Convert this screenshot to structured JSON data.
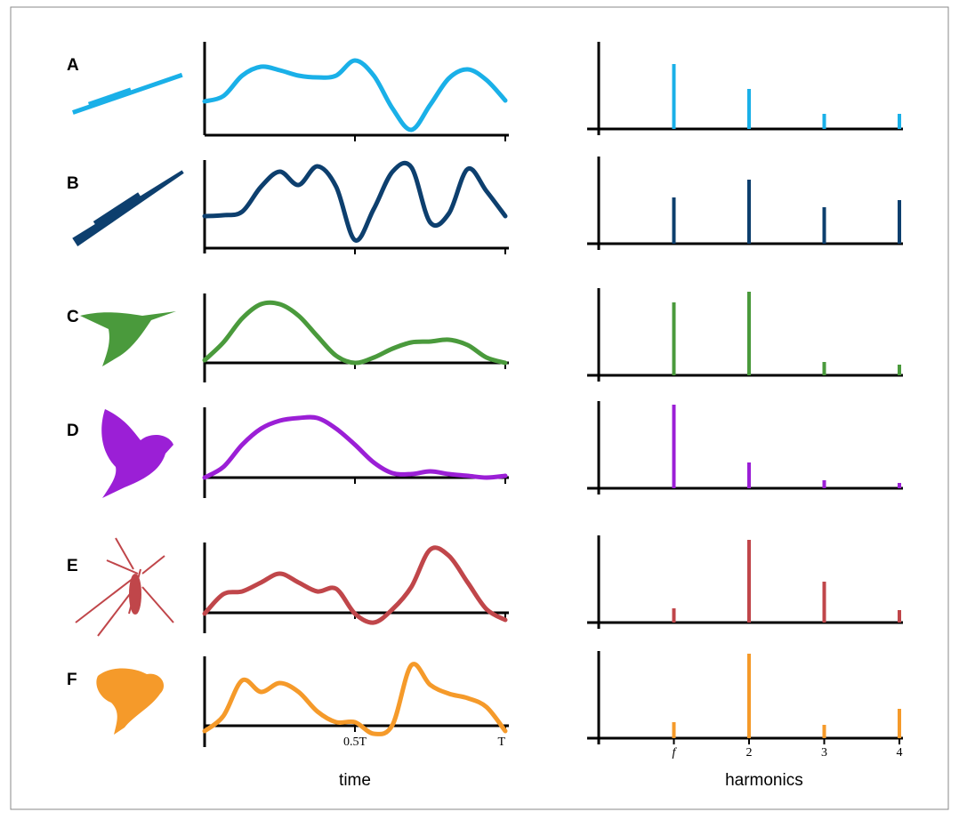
{
  "chart_data": [
    {
      "type": "line",
      "panel": "A",
      "x": [
        0,
        0.0625,
        0.125,
        0.1875,
        0.25,
        0.3125,
        0.375,
        0.4375,
        0.5,
        0.5625,
        0.625,
        0.6875,
        0.75,
        0.8125,
        0.875,
        0.9375,
        1
      ],
      "xlim": [
        0,
        1
      ],
      "ylim": [
        0,
        1.05
      ],
      "series": [
        {
          "color": "#1ab0e8",
          "values": [
            0.38,
            0.44,
            0.67,
            0.77,
            0.73,
            0.67,
            0.65,
            0.67,
            0.84,
            0.67,
            0.3,
            0.06,
            0.34,
            0.64,
            0.74,
            0.62,
            0.39
          ]
        }
      ]
    },
    {
      "type": "bar",
      "x": [
        1,
        2,
        3,
        4
      ],
      "xlim": [
        0,
        4
      ],
      "ylim": [
        -0.07,
        0.98
      ],
      "color": "#1ab0e8",
      "values": [
        0.73,
        0.45,
        0.17,
        0.17
      ]
    },
    {
      "type": "line",
      "panel": "B",
      "x": [
        0,
        0.0625,
        0.125,
        0.1875,
        0.25,
        0.3125,
        0.375,
        0.4375,
        0.5,
        0.5625,
        0.625,
        0.6875,
        0.75,
        0.8125,
        0.875,
        0.9375,
        1
      ],
      "xlim": [
        0,
        1
      ],
      "ylim": [
        -0.06,
        0.99
      ],
      "series": [
        {
          "color": "#0d3f6e",
          "values": [
            0.36,
            0.37,
            0.41,
            0.69,
            0.86,
            0.71,
            0.92,
            0.69,
            0.09,
            0.44,
            0.86,
            0.91,
            0.29,
            0.39,
            0.89,
            0.64,
            0.36
          ]
        }
      ]
    },
    {
      "type": "bar",
      "x": [
        1,
        2,
        3,
        4
      ],
      "xlim": [
        0,
        4
      ],
      "ylim": [
        -0.07,
        0.98
      ],
      "color": "#0d3f6e",
      "values": [
        0.52,
        0.72,
        0.41,
        0.49
      ]
    },
    {
      "type": "line",
      "panel": "C",
      "x": [
        0,
        0.0625,
        0.125,
        0.1875,
        0.25,
        0.3125,
        0.375,
        0.4375,
        0.5,
        0.5625,
        0.625,
        0.6875,
        0.75,
        0.8125,
        0.875,
        0.9375,
        1
      ],
      "xlim": [
        0,
        1
      ],
      "ylim": [
        -0.22,
        0.78
      ],
      "series": [
        {
          "color": "#4a9a3c",
          "values": [
            0.03,
            0.23,
            0.5,
            0.66,
            0.66,
            0.53,
            0.3,
            0.08,
            0,
            0.06,
            0.16,
            0.23,
            0.24,
            0.26,
            0.2,
            0.06,
            0
          ]
        }
      ]
    },
    {
      "type": "bar",
      "x": [
        1,
        2,
        3,
        4
      ],
      "xlim": [
        0,
        4
      ],
      "ylim": [
        -0.07,
        0.98
      ],
      "color": "#4a9a3c",
      "values": [
        0.82,
        0.94,
        0.15,
        0.12
      ]
    },
    {
      "type": "line",
      "panel": "D",
      "x": [
        0,
        0.0625,
        0.125,
        0.1875,
        0.25,
        0.3125,
        0.375,
        0.4375,
        0.5,
        0.5625,
        0.625,
        0.6875,
        0.75,
        0.8125,
        0.875,
        0.9375,
        1
      ],
      "xlim": [
        0,
        1
      ],
      "ylim": [
        -0.23,
        0.79
      ],
      "series": [
        {
          "color": "#9b1fd6",
          "values": [
            0,
            0.12,
            0.37,
            0.55,
            0.64,
            0.67,
            0.67,
            0.55,
            0.37,
            0.17,
            0.05,
            0.04,
            0.07,
            0.04,
            0.02,
            0,
            0.02
          ]
        }
      ]
    },
    {
      "type": "bar",
      "x": [
        1,
        2,
        3,
        4
      ],
      "xlim": [
        0,
        4
      ],
      "ylim": [
        -0.07,
        0.98
      ],
      "color": "#9b1fd6",
      "values": [
        0.94,
        0.29,
        0.09,
        0.06
      ]
    },
    {
      "type": "line",
      "panel": "E",
      "x": [
        0,
        0.0625,
        0.125,
        0.1875,
        0.25,
        0.3125,
        0.375,
        0.4375,
        0.5,
        0.5625,
        0.625,
        0.6875,
        0.75,
        0.8125,
        0.875,
        0.9375,
        1
      ],
      "xlim": [
        0,
        1
      ],
      "ylim": [
        -0.23,
        0.79
      ],
      "series": [
        {
          "color": "#c0464a",
          "values": [
            -0.01,
            0.21,
            0.24,
            0.34,
            0.44,
            0.34,
            0.24,
            0.27,
            -0.01,
            -0.11,
            0.04,
            0.29,
            0.71,
            0.64,
            0.34,
            0.04,
            -0.08
          ]
        }
      ]
    },
    {
      "type": "bar",
      "x": [
        1,
        2,
        3,
        4
      ],
      "xlim": [
        0,
        4
      ],
      "ylim": [
        -0.07,
        0.98
      ],
      "color": "#c0464a",
      "values": [
        0.16,
        0.93,
        0.46,
        0.14
      ]
    },
    {
      "type": "line",
      "panel": "F",
      "x": [
        0,
        0.0625,
        0.125,
        0.1875,
        0.25,
        0.3125,
        0.375,
        0.4375,
        0.5,
        0.5625,
        0.625,
        0.6875,
        0.75,
        0.8125,
        0.875,
        0.9375,
        1
      ],
      "xlim": [
        0,
        1
      ],
      "ylim": [
        -0.24,
        0.78
      ],
      "xlabel": "time",
      "xticks": [
        {
          "value": 0.5,
          "label": "0.5T"
        },
        {
          "value": 1,
          "label": "T"
        }
      ],
      "series": [
        {
          "color": "#f59a2a",
          "values": [
            -0.06,
            0.11,
            0.51,
            0.38,
            0.48,
            0.38,
            0.16,
            0.04,
            0.04,
            -0.09,
            0.01,
            0.68,
            0.46,
            0.36,
            0.31,
            0.21,
            -0.06
          ]
        }
      ]
    },
    {
      "type": "bar",
      "x": [
        1,
        2,
        3,
        4
      ],
      "xlim": [
        0,
        4
      ],
      "ylim": [
        -0.07,
        0.98
      ],
      "color": "#f59a2a",
      "xlabel": "harmonics",
      "xticks": [
        {
          "value": 1,
          "label": "f"
        },
        2,
        3,
        4
      ],
      "values": [
        0.18,
        0.95,
        0.15,
        0.33
      ]
    }
  ]
}
